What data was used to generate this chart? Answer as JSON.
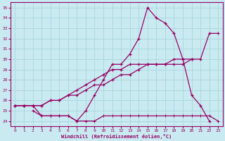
{
  "xlabel": "Windchill (Refroidissement éolien,°C)",
  "xlim": [
    -0.5,
    23.5
  ],
  "ylim": [
    23.5,
    35.5
  ],
  "yticks": [
    24,
    25,
    26,
    27,
    28,
    29,
    30,
    31,
    32,
    33,
    34,
    35
  ],
  "xticks": [
    0,
    1,
    2,
    3,
    4,
    5,
    6,
    7,
    8,
    9,
    10,
    11,
    12,
    13,
    14,
    15,
    16,
    17,
    18,
    19,
    20,
    21,
    22,
    23
  ],
  "bg_color": "#c8eaf0",
  "grid_color": "#b0d8e0",
  "line_color": "#990066",
  "line1_x": [
    0,
    1,
    2,
    3,
    4,
    5,
    6,
    7,
    8,
    9,
    10,
    11,
    12,
    13,
    14,
    15,
    16,
    17,
    18,
    19,
    20,
    21,
    22
  ],
  "line1_y": [
    25.5,
    25.5,
    25.5,
    24.5,
    24.5,
    24.5,
    24.5,
    24.0,
    25.0,
    26.5,
    28.0,
    29.5,
    29.5,
    30.5,
    32.0,
    35.0,
    34.0,
    33.5,
    32.5,
    30.0,
    26.5,
    25.5,
    24.0
  ],
  "line2_x": [
    0,
    1,
    2,
    3,
    4,
    5,
    6,
    7,
    8,
    9,
    10,
    11,
    12,
    13,
    14,
    15,
    16,
    17,
    18,
    19,
    20,
    21,
    22,
    23
  ],
  "line2_y": [
    25.5,
    25.5,
    25.5,
    25.5,
    26.0,
    26.0,
    26.5,
    26.5,
    27.0,
    27.5,
    27.5,
    28.0,
    28.5,
    28.5,
    29.0,
    29.5,
    29.5,
    29.5,
    29.5,
    29.5,
    30.0,
    30.0,
    32.5,
    32.5
  ],
  "line3_x": [
    0,
    1,
    2,
    3,
    4,
    5,
    6,
    7,
    8,
    9,
    10,
    11,
    12,
    13,
    14,
    15,
    16,
    17,
    18,
    19,
    20
  ],
  "line3_y": [
    25.5,
    25.5,
    25.5,
    25.5,
    26.0,
    26.0,
    26.5,
    27.0,
    27.5,
    28.0,
    28.5,
    29.0,
    29.0,
    29.5,
    29.5,
    29.5,
    29.5,
    29.5,
    30.0,
    30.0,
    30.0
  ],
  "line4_x": [
    2,
    3,
    4,
    5,
    6,
    7,
    8,
    9,
    10,
    11,
    12,
    13,
    14,
    15,
    16,
    17,
    18,
    19,
    20,
    21,
    22,
    23
  ],
  "line4_y": [
    25.0,
    24.5,
    24.5,
    24.5,
    24.5,
    24.0,
    24.0,
    24.0,
    24.5,
    24.5,
    24.5,
    24.5,
    24.5,
    24.5,
    24.5,
    24.5,
    24.5,
    24.5,
    24.5,
    24.5,
    24.5,
    24.0
  ]
}
